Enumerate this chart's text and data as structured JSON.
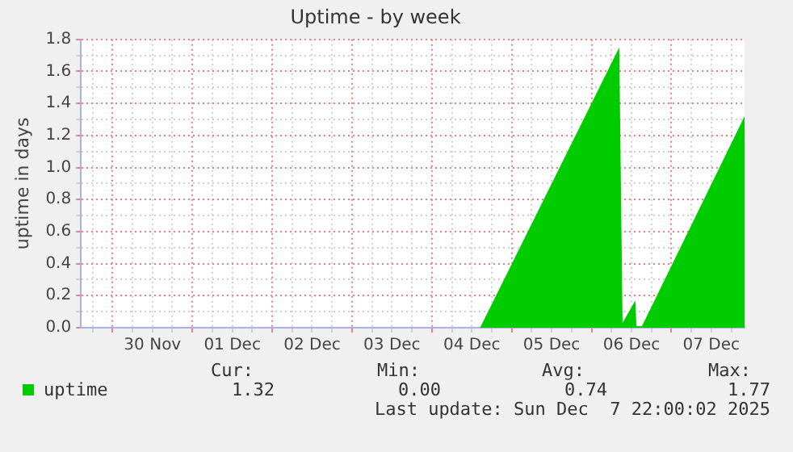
{
  "chart_data": {
    "type": "area",
    "title": "Uptime - by week",
    "ylabel": "uptime in days",
    "x": [
      "2025-11-29T14:30",
      "2025-12-04T14:30",
      "2025-12-06T08:20",
      "2025-12-06T09:20",
      "2025-12-06T13:10",
      "2025-12-06T13:30",
      "2025-12-06T15:10",
      "2025-12-07T22:00"
    ],
    "series": [
      {
        "name": "uptime",
        "color": "#00cc00",
        "values": [
          0,
          0,
          1.75,
          0.03,
          0.17,
          0.01,
          0.01,
          1.32
        ]
      }
    ],
    "xlim": [
      "2025-11-29T14:30",
      "2025-12-07T22:00"
    ],
    "xticks": [
      {
        "value": "2025-11-29T18:00",
        "label": null
      },
      {
        "value": "2025-11-30T00:00",
        "label": null
      },
      {
        "value": "2025-11-30T06:00",
        "label": null
      },
      {
        "value": "2025-11-30T12:00",
        "label": "30 Nov"
      },
      {
        "value": "2025-11-30T18:00",
        "label": null
      },
      {
        "value": "2025-12-01T00:00",
        "label": null
      },
      {
        "value": "2025-12-01T06:00",
        "label": null
      },
      {
        "value": "2025-12-01T12:00",
        "label": "01 Dec"
      },
      {
        "value": "2025-12-01T18:00",
        "label": null
      },
      {
        "value": "2025-12-02T00:00",
        "label": null
      },
      {
        "value": "2025-12-02T06:00",
        "label": null
      },
      {
        "value": "2025-12-02T12:00",
        "label": "02 Dec"
      },
      {
        "value": "2025-12-02T18:00",
        "label": null
      },
      {
        "value": "2025-12-03T00:00",
        "label": null
      },
      {
        "value": "2025-12-03T06:00",
        "label": null
      },
      {
        "value": "2025-12-03T12:00",
        "label": "03 Dec"
      },
      {
        "value": "2025-12-03T18:00",
        "label": null
      },
      {
        "value": "2025-12-04T00:00",
        "label": null
      },
      {
        "value": "2025-12-04T06:00",
        "label": null
      },
      {
        "value": "2025-12-04T12:00",
        "label": "04 Dec"
      },
      {
        "value": "2025-12-04T18:00",
        "label": null
      },
      {
        "value": "2025-12-05T00:00",
        "label": null
      },
      {
        "value": "2025-12-05T06:00",
        "label": null
      },
      {
        "value": "2025-12-05T12:00",
        "label": "05 Dec"
      },
      {
        "value": "2025-12-05T18:00",
        "label": null
      },
      {
        "value": "2025-12-06T00:00",
        "label": null
      },
      {
        "value": "2025-12-06T06:00",
        "label": null
      },
      {
        "value": "2025-12-06T12:00",
        "label": "06 Dec"
      },
      {
        "value": "2025-12-06T18:00",
        "label": null
      },
      {
        "value": "2025-12-07T00:00",
        "label": null
      },
      {
        "value": "2025-12-07T06:00",
        "label": null
      },
      {
        "value": "2025-12-07T12:00",
        "label": "07 Dec"
      },
      {
        "value": "2025-12-07T18:00",
        "label": null
      }
    ],
    "ylim": [
      0,
      1.8
    ],
    "yticks": [
      {
        "value": 0,
        "label": "0.0"
      },
      {
        "value": 0.1,
        "label": null
      },
      {
        "value": 0.2,
        "label": "0.2"
      },
      {
        "value": 0.3,
        "label": null
      },
      {
        "value": 0.4,
        "label": "0.4"
      },
      {
        "value": 0.5,
        "label": null
      },
      {
        "value": 0.6,
        "label": "0.6"
      },
      {
        "value": 0.7,
        "label": null
      },
      {
        "value": 0.8,
        "label": "0.8"
      },
      {
        "value": 0.9,
        "label": null
      },
      {
        "value": 1,
        "label": "1.0"
      },
      {
        "value": 1.1,
        "label": null
      },
      {
        "value": 1.2,
        "label": "1.2"
      },
      {
        "value": 1.3,
        "label": null
      },
      {
        "value": 1.4,
        "label": "1.4"
      },
      {
        "value": 1.5,
        "label": null
      },
      {
        "value": 1.6,
        "label": "1.6"
      },
      {
        "value": 1.7,
        "label": null
      },
      {
        "value": 1.8,
        "label": "1.8"
      }
    ],
    "grid": true,
    "legend": "bottom left",
    "annotations": [
      "Cur:",
      "Min:",
      "Avg:",
      "Max:",
      "1.32",
      "0.00",
      "0.74",
      "1.77",
      "Last update: Sun Dec  7 22:00:02 2025"
    ]
  }
}
